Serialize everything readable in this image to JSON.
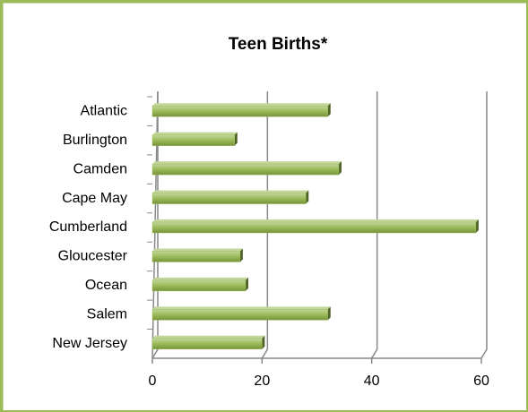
{
  "chart_data": {
    "type": "bar",
    "orientation": "horizontal",
    "title": "Teen Births*",
    "categories": [
      "Atlantic",
      "Burlington",
      "Camden",
      "Cape May",
      "Cumberland",
      "Gloucester",
      "Ocean",
      "Salem",
      "New Jersey"
    ],
    "values": [
      32,
      15,
      34,
      28,
      59,
      16,
      17,
      32,
      20
    ],
    "color": "#9bbb59",
    "xlim": [
      0,
      60
    ],
    "xticks": [
      0,
      20,
      40,
      60
    ],
    "grid": true
  }
}
